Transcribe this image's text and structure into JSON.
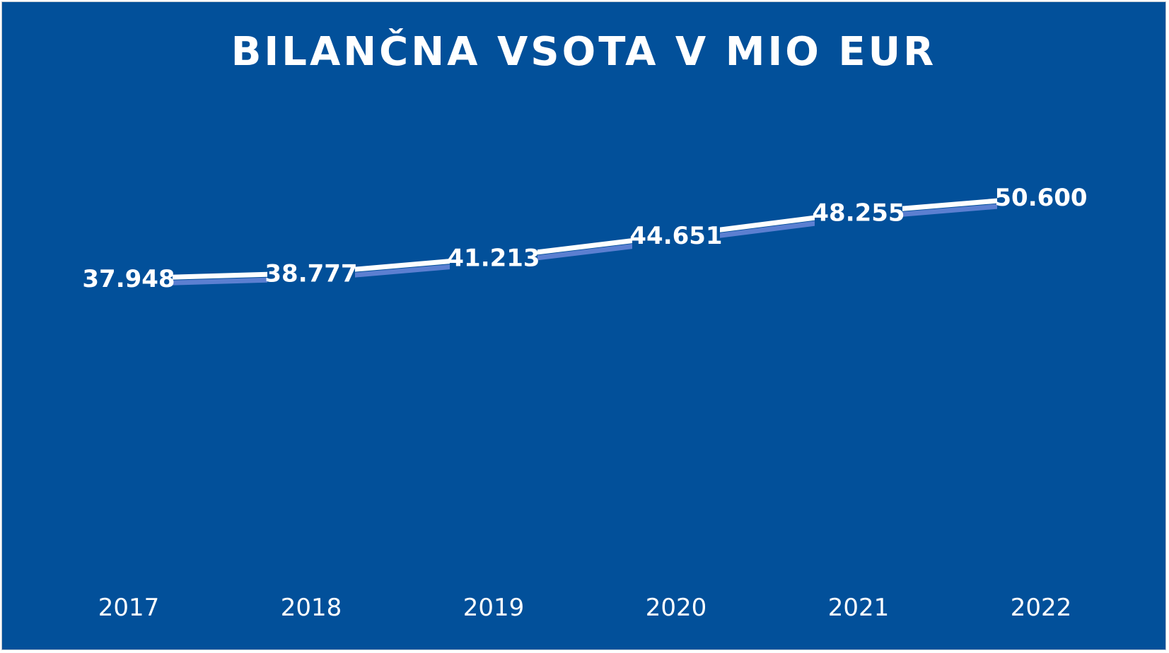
{
  "chart_data": {
    "type": "line",
    "title": "BILANČNA VSOTA V MIO EUR",
    "categories": [
      "2017",
      "2018",
      "2019",
      "2020",
      "2021",
      "2022"
    ],
    "series": [
      {
        "values": [
          37948,
          38777,
          41213,
          44651,
          48255,
          50600
        ],
        "labels": [
          "37.948",
          "38.777",
          "41.213",
          "44.651",
          "48.255",
          "50.600"
        ]
      }
    ],
    "xlabel": "",
    "ylabel": "",
    "grid": false,
    "legend": "none",
    "colors": {
      "background": "#02509a",
      "line": "#ffffff",
      "line_shadow": "#5b7fd1",
      "drop_lines": "#ffffff",
      "text": "#ffffff"
    }
  }
}
